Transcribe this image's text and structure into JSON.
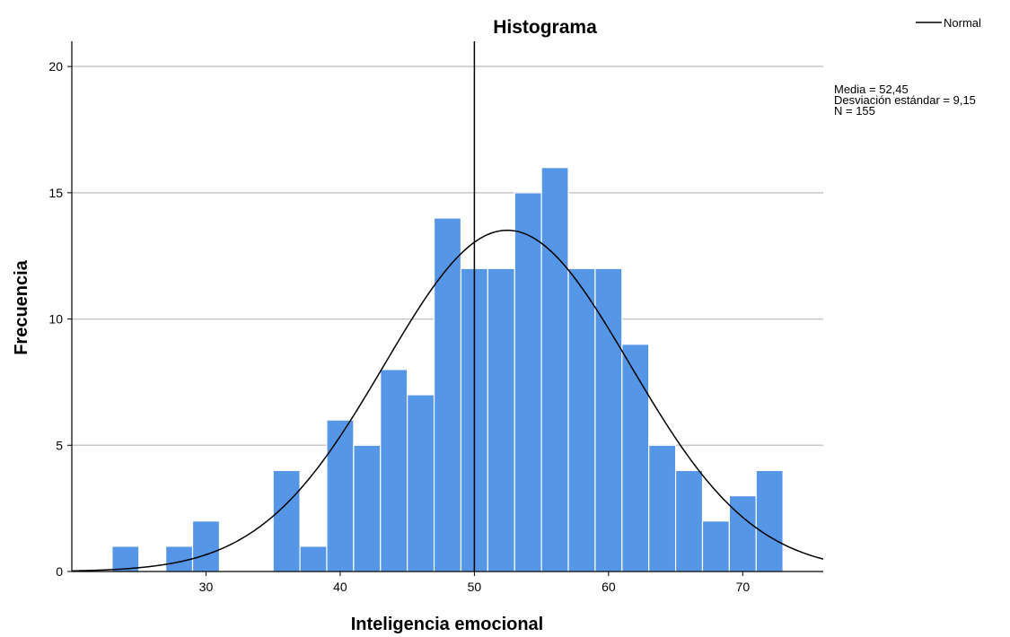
{
  "chart_data": {
    "type": "bar",
    "title": "Histograma",
    "xlabel": "Inteligencia emocional",
    "ylabel": "Frecuencia",
    "xlim": [
      20,
      76
    ],
    "ylim": [
      0,
      21
    ],
    "xticks": [
      30,
      40,
      50,
      60,
      70
    ],
    "xtick_labels": [
      "30",
      "40",
      "50",
      "60",
      "70"
    ],
    "yticks": [
      0,
      5,
      10,
      15,
      20
    ],
    "ytick_labels": [
      "0",
      "5",
      "10",
      "15",
      "20"
    ],
    "grid": "horizontal",
    "bin_width": 2,
    "bins": [
      {
        "start": 23,
        "end": 25,
        "count": 1
      },
      {
        "start": 27,
        "end": 29,
        "count": 1
      },
      {
        "start": 29,
        "end": 31,
        "count": 2
      },
      {
        "start": 35,
        "end": 37,
        "count": 4
      },
      {
        "start": 37,
        "end": 39,
        "count": 1
      },
      {
        "start": 39,
        "end": 41,
        "count": 6
      },
      {
        "start": 41,
        "end": 43,
        "count": 5
      },
      {
        "start": 43,
        "end": 45,
        "count": 8
      },
      {
        "start": 45,
        "end": 47,
        "count": 7
      },
      {
        "start": 47,
        "end": 49,
        "count": 14
      },
      {
        "start": 49,
        "end": 51,
        "count": 12
      },
      {
        "start": 51,
        "end": 53,
        "count": 12
      },
      {
        "start": 53,
        "end": 55,
        "count": 15
      },
      {
        "start": 55,
        "end": 57,
        "count": 16
      },
      {
        "start": 57,
        "end": 59,
        "count": 12
      },
      {
        "start": 59,
        "end": 61,
        "count": 12
      },
      {
        "start": 61,
        "end": 63,
        "count": 9
      },
      {
        "start": 63,
        "end": 65,
        "count": 5
      },
      {
        "start": 65,
        "end": 67,
        "count": 4
      },
      {
        "start": 67,
        "end": 69,
        "count": 2
      },
      {
        "start": 69,
        "end": 71,
        "count": 3
      },
      {
        "start": 71,
        "end": 73,
        "count": 4
      }
    ],
    "reference_line_x": 50,
    "normal_curve": {
      "name": "Normal",
      "mean": 52.45,
      "sd": 9.15,
      "n": 155
    },
    "legend": {
      "placement": "top-right",
      "entries": [
        "Normal"
      ]
    },
    "stats": {
      "lines": [
        "Media = 52,45",
        "Desviación estándar = 9,15",
        "N = 155"
      ]
    },
    "colors": {
      "bar_fill": "#5596e6",
      "bar_stroke": "#ffffff",
      "curve": "#000000",
      "grid": "#c8c8c8",
      "axis": "#000000",
      "reference_line": "#000000"
    }
  }
}
